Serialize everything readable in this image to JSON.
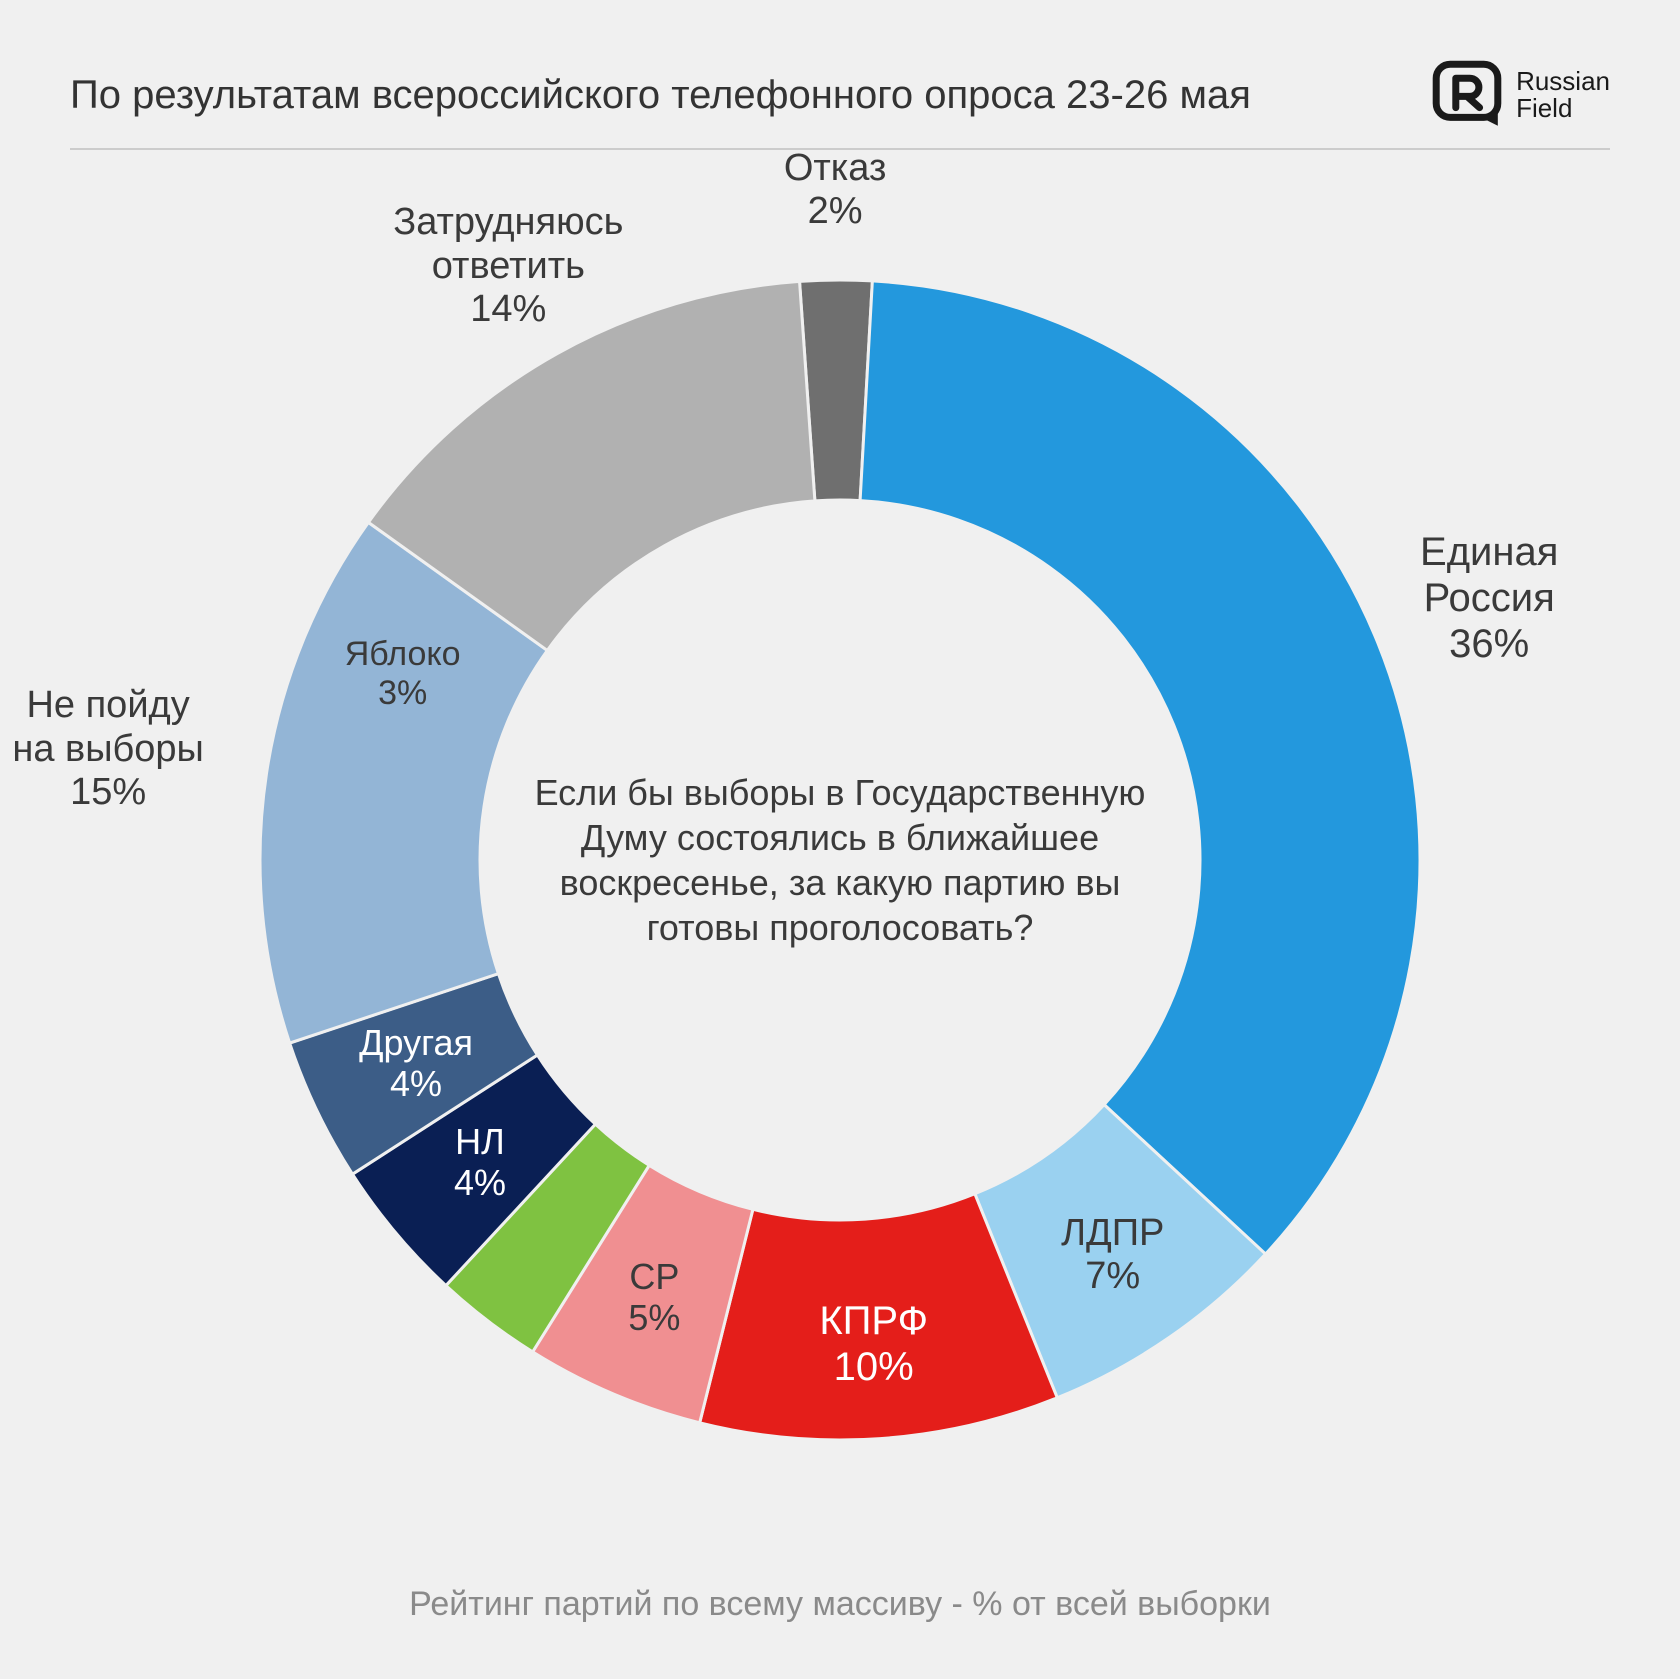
{
  "header": {
    "title": "По результатам всероссийского телефонного опроса 23-26 мая",
    "brand_line1": "Russian",
    "brand_line2": "Field"
  },
  "footer": "Рейтинг партий по всему массиву - % от всей выборки",
  "center_question": "Если бы выборы в Государственную Думу состоялись в ближайшее воскресенье, за какую партию вы готовы проголосовать?",
  "chart": {
    "type": "donut",
    "background_color": "#f0f0f0",
    "donut_gap_color": "#f0f0f0",
    "donut_gap_width": 3,
    "outer_radius": 580,
    "inner_radius": 360,
    "text_color": "#3a3a3a",
    "label_fontsize": 38,
    "start_angle_deg": -94,
    "slices": [
      {
        "name": "Отказ",
        "value": 2,
        "color": "#6f6f6f",
        "label_r": 670,
        "label_fontsize": 38,
        "label_color": "#3a3a3a"
      },
      {
        "name": "Единая Россия",
        "value": 36,
        "color": "#2398dd",
        "label_r": 700,
        "label_fontsize": 40,
        "label_color": "#3a3a3a",
        "multiline": true
      },
      {
        "name": "ЛДПР",
        "value": 7,
        "color": "#9ad1f0",
        "label_r": 480,
        "label_fontsize": 38,
        "label_color": "#3a3a3a"
      },
      {
        "name": "КПРФ",
        "value": 10,
        "color": "#e41e1a",
        "label_r": 485,
        "label_fontsize": 40,
        "label_color": "#ffffff"
      },
      {
        "name": "СР",
        "value": 5,
        "color": "#f08f91",
        "label_r": 475,
        "label_fontsize": 36,
        "label_color": "#3a3a3a"
      },
      {
        "name": "Яблоко",
        "value": 3,
        "color": "#7fc241",
        "label_r": 475,
        "label_fontsize": 34,
        "label_color": "#3a3a3a",
        "label_angle_override": 203
      },
      {
        "name": "НЛ",
        "value": 4,
        "color": "#0a1f54",
        "label_r": 470,
        "label_fontsize": 36,
        "label_color": "#ffffff"
      },
      {
        "name": "Другая",
        "value": 4,
        "color": "#3c5d87",
        "label_r": 470,
        "label_fontsize": 36,
        "label_color": "#ffffff"
      },
      {
        "name": "Не пойду на выборы",
        "value": 15,
        "color": "#93b5d6",
        "label_r": 740,
        "label_fontsize": 38,
        "label_color": "#3a3a3a",
        "multiline": true
      },
      {
        "name": "Затрудняюсь ответить",
        "value": 14,
        "color": "#b1b1b1",
        "label_r": 680,
        "label_fontsize": 38,
        "label_color": "#3a3a3a",
        "multiline": true
      }
    ]
  }
}
